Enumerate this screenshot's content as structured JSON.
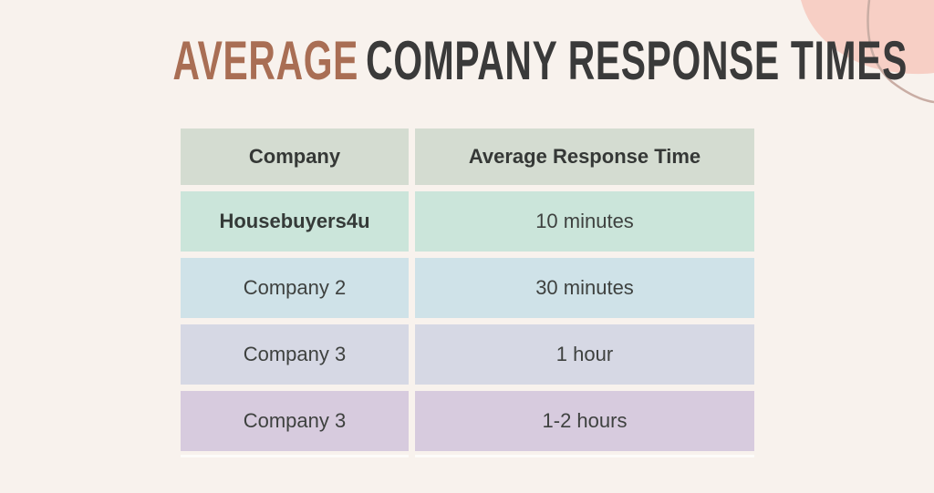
{
  "page": {
    "background": "#f8f2ed"
  },
  "title": {
    "accent": "AVERAGE",
    "rest": "COMPANY RESPONSE TIMES",
    "accent_color": "#a96e54",
    "text_color": "#3a3a3a"
  },
  "table": {
    "headers": [
      {
        "label": "Company"
      },
      {
        "label": "Average Response Time"
      }
    ],
    "header_bg": "#d4dcd1",
    "rows": [
      {
        "company": "Housebuyers4u",
        "time": "10 minutes",
        "bg": "#cbe5da",
        "bold": true
      },
      {
        "company": "Company 2",
        "time": "30 minutes",
        "bg": "#cfe2e8",
        "bold": false
      },
      {
        "company": "Company 3",
        "time": "1 hour",
        "bg": "#d6d8e4",
        "bold": false
      },
      {
        "company": "Company 3",
        "time": "1-2 hours",
        "bg": "#d7cbde",
        "bold": false
      }
    ]
  },
  "decoration": {
    "blob_color": "#f7cfc5",
    "line_color": "#c9ada4"
  }
}
